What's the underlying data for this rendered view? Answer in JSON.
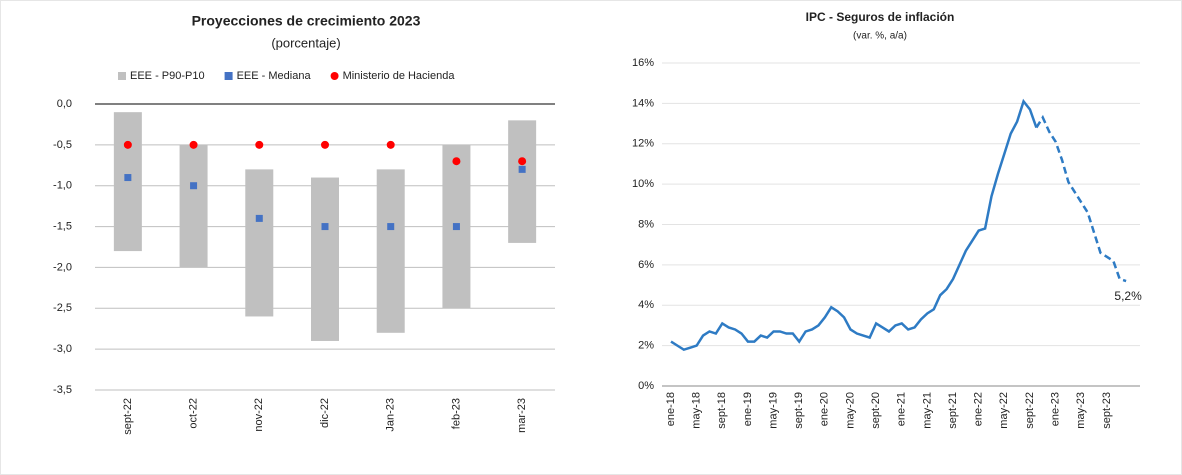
{
  "chart_data": [
    {
      "type": "range-bar",
      "title": "Proyecciones de crecimiento 2023",
      "subtitle": "(porcentaje)",
      "categories": [
        "sept-22",
        "oct-22",
        "nov-22",
        "dic-22",
        "Jan-23",
        "feb-23",
        "mar-23"
      ],
      "series": [
        {
          "name": "EEE - P90-P10",
          "color": "#c0c0c0",
          "marker": "range",
          "low": [
            -1.8,
            -2.0,
            -2.6,
            -2.9,
            -2.8,
            -2.5,
            -1.7
          ],
          "high": [
            -0.1,
            -0.5,
            -0.8,
            -0.9,
            -0.8,
            -0.5,
            -0.2
          ]
        },
        {
          "name": "EEE - Mediana",
          "color": "#4472c4",
          "marker": "square",
          "values": [
            -0.9,
            -1.0,
            -1.4,
            -1.5,
            -1.5,
            -1.5,
            -0.8
          ]
        },
        {
          "name": "Ministerio de Hacienda",
          "color": "#ff0000",
          "marker": "dot",
          "values": [
            -0.5,
            -0.5,
            -0.5,
            -0.5,
            -0.5,
            -0.7,
            -0.7
          ]
        }
      ],
      "ylim": [
        -3.5,
        0
      ],
      "yticks": [
        {
          "value": 0,
          "label": "0,0"
        },
        {
          "value": -0.5,
          "label": "-0,5"
        },
        {
          "value": -1,
          "label": "-1,0"
        },
        {
          "value": -1.5,
          "label": "-1,5"
        },
        {
          "value": -2,
          "label": "-2,0"
        },
        {
          "value": -2.5,
          "label": "-2,5"
        },
        {
          "value": -3,
          "label": "-3,0"
        },
        {
          "value": -3.5,
          "label": "-3,5"
        }
      ],
      "grid": true
    },
    {
      "type": "line",
      "title": "IPC - Seguros de inflación",
      "subtitle": "(var. %, a/a)",
      "categories": [
        "ene-18",
        null,
        null,
        null,
        "may-18",
        null,
        null,
        null,
        "sept-18",
        null,
        null,
        null,
        "ene-19",
        null,
        null,
        null,
        "may-19",
        null,
        null,
        null,
        "sept-19",
        null,
        null,
        null,
        "ene-20",
        null,
        null,
        null,
        "may-20",
        null,
        null,
        null,
        "sept-20",
        null,
        null,
        null,
        "ene-21",
        null,
        null,
        null,
        "may-21",
        null,
        null,
        null,
        "sept-21",
        null,
        null,
        null,
        "ene-22",
        null,
        null,
        null,
        "may-22",
        null,
        null,
        null,
        "sept-22",
        null,
        null,
        null,
        "ene-23",
        null,
        null,
        null,
        "may-23",
        null,
        null,
        null,
        "sept-23",
        null,
        null,
        null
      ],
      "series": [
        {
          "color": "#2e7bc4",
          "dashed": false,
          "values": [
            2.2,
            2.0,
            1.8,
            1.9,
            2.0,
            2.5,
            2.7,
            2.6,
            3.1,
            2.9,
            2.8,
            2.6,
            2.2,
            2.2,
            2.5,
            2.4,
            2.7,
            2.7,
            2.6,
            2.6,
            2.2,
            2.7,
            2.8,
            3.0,
            3.4,
            3.9,
            3.7,
            3.4,
            2.8,
            2.6,
            2.5,
            2.4,
            3.1,
            2.9,
            2.7,
            3.0,
            3.1,
            2.8,
            2.9,
            3.3,
            3.6,
            3.8,
            4.5,
            4.8,
            5.3,
            6.0,
            6.7,
            7.2,
            7.7,
            7.8,
            9.4,
            10.5,
            11.5,
            12.5,
            13.1,
            14.1,
            13.7,
            12.8,
            null,
            null,
            null,
            null,
            null,
            null,
            null,
            null,
            null,
            null,
            null,
            null,
            null,
            null
          ]
        },
        {
          "color": "#2e7bc4",
          "dashed": true,
          "values": [
            null,
            null,
            null,
            null,
            null,
            null,
            null,
            null,
            null,
            null,
            null,
            null,
            null,
            null,
            null,
            null,
            null,
            null,
            null,
            null,
            null,
            null,
            null,
            null,
            null,
            null,
            null,
            null,
            null,
            null,
            null,
            null,
            null,
            null,
            null,
            null,
            null,
            null,
            null,
            null,
            null,
            null,
            null,
            null,
            null,
            null,
            null,
            null,
            null,
            null,
            null,
            null,
            null,
            null,
            null,
            null,
            null,
            12.8,
            13.3,
            12.6,
            12.1,
            11.2,
            10.1,
            9.6,
            9.1,
            8.6,
            7.6,
            6.6,
            6.4,
            6.2,
            5.3,
            5.2
          ]
        }
      ],
      "annotation": "5,2%",
      "ylim": [
        0,
        16
      ],
      "yticks": [
        {
          "value": 0,
          "label": "0%"
        },
        {
          "value": 2,
          "label": "2%"
        },
        {
          "value": 4,
          "label": "4%"
        },
        {
          "value": 6,
          "label": "6%"
        },
        {
          "value": 8,
          "label": "8%"
        },
        {
          "value": 10,
          "label": "10%"
        },
        {
          "value": 12,
          "label": "12%"
        },
        {
          "value": 14,
          "label": "14%"
        },
        {
          "value": 16,
          "label": "16%"
        }
      ],
      "grid": true
    }
  ]
}
